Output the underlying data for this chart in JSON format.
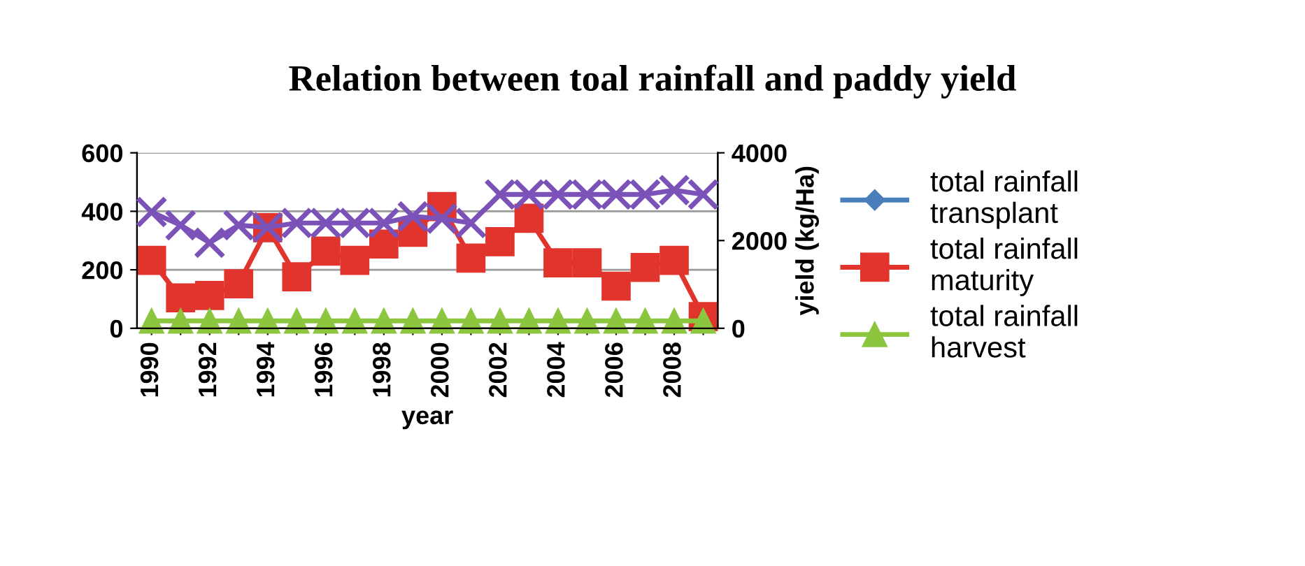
{
  "chart_data": {
    "type": "line",
    "title": "Relation between toal rainfall and paddy yield",
    "xlabel": "year",
    "y2label": "yield (kg/Ha)",
    "categories": [
      "1990",
      null,
      "1992",
      null,
      "1994",
      null,
      "1996",
      null,
      "1998",
      null,
      "2000",
      null,
      "2002",
      null,
      "2004",
      null,
      "2006",
      null,
      "2008",
      null
    ],
    "series": [
      {
        "name": "total rainfall transplant",
        "color": "#4a7ebb",
        "marker": "diamond",
        "values": [
          null,
          null,
          null,
          null,
          null,
          null,
          null,
          null,
          null,
          null,
          null,
          null,
          null,
          null,
          null,
          null,
          null,
          null,
          null,
          null
        ]
      },
      {
        "name": "total rainfall maturity",
        "color": "#e0342c",
        "marker": "square",
        "values": [
          232,
          104,
          112,
          152,
          344,
          176,
          264,
          232,
          288,
          328,
          416,
          240,
          296,
          376,
          224,
          224,
          144,
          208,
          232,
          40
        ]
      },
      {
        "name": "total rainfall harvest",
        "color": "#8cc63f",
        "marker": "triangle",
        "values": [
          25,
          25,
          25,
          25,
          25,
          25,
          25,
          25,
          25,
          25,
          25,
          25,
          25,
          25,
          25,
          25,
          25,
          25,
          25,
          25
        ]
      },
      {
        "color": "#7b52b8",
        "marker": "cross",
        "axis": "y2",
        "values": [
          2650,
          2350,
          1950,
          2350,
          2300,
          2400,
          2400,
          2400,
          2400,
          2550,
          2500,
          2400,
          3050,
          3050,
          3050,
          3050,
          3050,
          3050,
          3150,
          3050
        ]
      }
    ],
    "ylim": [
      0,
      600
    ],
    "yticks": [
      0,
      200,
      400,
      600
    ],
    "y2lim": [
      0,
      4000
    ],
    "y2ticks": [
      0,
      2000,
      4000
    ],
    "grid": "y",
    "legend": "right"
  }
}
